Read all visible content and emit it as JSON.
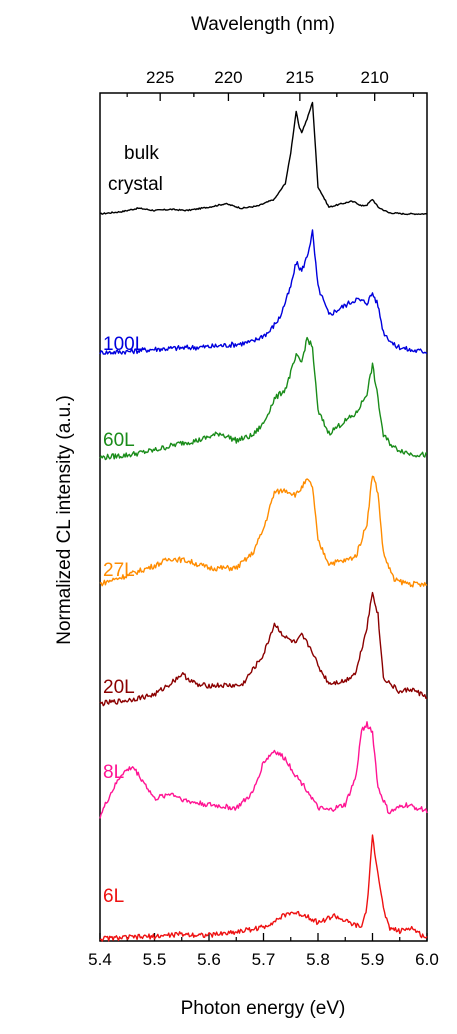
{
  "chart_data": {
    "type": "line",
    "title": "",
    "xlabel": "Photon energy (eV)",
    "x2label": "Wavelength (nm)",
    "ylabel": "Normalized CL intensity (a.u.)",
    "xlim": [
      5.4,
      6.0
    ],
    "x_ticks": [
      "5.4",
      "5.5",
      "5.6",
      "5.7",
      "5.8",
      "5.9",
      "6.0"
    ],
    "x2_ticks": [
      "225",
      "220",
      "215",
      "210"
    ],
    "y_ticklabels": false,
    "stacked_offset": true,
    "series": [
      {
        "name": "bulk crystal",
        "name_lines": [
          "bulk",
          "crystal"
        ],
        "color": "#000000",
        "x": [
          5.4,
          5.44,
          5.47,
          5.5,
          5.53,
          5.56,
          5.6,
          5.63,
          5.66,
          5.69,
          5.72,
          5.74,
          5.75,
          5.76,
          5.765,
          5.77,
          5.78,
          5.79,
          5.8,
          5.82,
          5.86,
          5.87,
          5.88,
          5.89,
          5.9,
          5.91,
          5.93,
          5.96,
          6.0
        ],
        "y": [
          0.01,
          0.03,
          0.06,
          0.04,
          0.05,
          0.04,
          0.07,
          0.1,
          0.06,
          0.08,
          0.14,
          0.28,
          0.55,
          0.92,
          0.78,
          0.73,
          0.85,
          1.0,
          0.25,
          0.07,
          0.12,
          0.11,
          0.08,
          0.09,
          0.14,
          0.07,
          0.02,
          0.01,
          0.01
        ]
      },
      {
        "name": "100L",
        "color": "#0000dd",
        "x": [
          5.4,
          5.45,
          5.5,
          5.55,
          5.6,
          5.65,
          5.68,
          5.71,
          5.73,
          5.75,
          5.76,
          5.77,
          5.78,
          5.79,
          5.8,
          5.82,
          5.85,
          5.87,
          5.89,
          5.9,
          5.91,
          5.92,
          5.94,
          5.97,
          6.0
        ],
        "y": [
          0.01,
          0.02,
          0.04,
          0.05,
          0.06,
          0.08,
          0.1,
          0.18,
          0.3,
          0.55,
          0.75,
          0.68,
          0.8,
          1.0,
          0.55,
          0.32,
          0.4,
          0.45,
          0.42,
          0.5,
          0.4,
          0.18,
          0.07,
          0.03,
          0.02
        ]
      },
      {
        "name": "60L",
        "color": "#1a8c1a",
        "x": [
          5.4,
          5.45,
          5.5,
          5.55,
          5.58,
          5.62,
          5.65,
          5.68,
          5.7,
          5.72,
          5.74,
          5.76,
          5.77,
          5.78,
          5.79,
          5.8,
          5.82,
          5.85,
          5.87,
          5.89,
          5.9,
          5.91,
          5.92,
          5.94,
          5.97,
          6.0
        ],
        "y": [
          0.02,
          0.04,
          0.08,
          0.14,
          0.16,
          0.22,
          0.16,
          0.2,
          0.3,
          0.5,
          0.58,
          0.85,
          0.8,
          1.0,
          0.92,
          0.4,
          0.22,
          0.32,
          0.38,
          0.55,
          0.78,
          0.5,
          0.2,
          0.1,
          0.05,
          0.04
        ]
      },
      {
        "name": "27L",
        "color": "#ff8c00",
        "x": [
          5.4,
          5.45,
          5.5,
          5.53,
          5.56,
          5.6,
          5.65,
          5.68,
          5.7,
          5.72,
          5.74,
          5.76,
          5.78,
          5.79,
          5.8,
          5.82,
          5.85,
          5.87,
          5.89,
          5.9,
          5.91,
          5.92,
          5.94,
          5.97,
          6.0
        ],
        "y": [
          0.05,
          0.12,
          0.2,
          0.26,
          0.24,
          0.18,
          0.18,
          0.3,
          0.5,
          0.8,
          0.82,
          0.78,
          0.9,
          0.85,
          0.4,
          0.22,
          0.24,
          0.28,
          0.55,
          0.95,
          0.8,
          0.3,
          0.08,
          0.05,
          0.04
        ]
      },
      {
        "name": "20L",
        "color": "#8b0000",
        "x": [
          5.4,
          5.45,
          5.5,
          5.53,
          5.55,
          5.58,
          5.62,
          5.66,
          5.7,
          5.72,
          5.74,
          5.76,
          5.77,
          5.79,
          5.8,
          5.82,
          5.85,
          5.87,
          5.89,
          5.9,
          5.91,
          5.92,
          5.95,
          5.97,
          6.0
        ],
        "y": [
          0.02,
          0.05,
          0.1,
          0.2,
          0.28,
          0.18,
          0.18,
          0.18,
          0.45,
          0.72,
          0.6,
          0.55,
          0.62,
          0.48,
          0.35,
          0.2,
          0.22,
          0.3,
          0.7,
          1.0,
          0.8,
          0.25,
          0.12,
          0.15,
          0.08
        ]
      },
      {
        "name": "8L",
        "color": "#ff1493",
        "x": [
          5.4,
          5.42,
          5.44,
          5.46,
          5.48,
          5.5,
          5.53,
          5.56,
          5.6,
          5.65,
          5.68,
          5.7,
          5.72,
          5.74,
          5.76,
          5.78,
          5.8,
          5.82,
          5.85,
          5.87,
          5.88,
          5.89,
          5.9,
          5.91,
          5.93,
          5.96,
          6.0
        ],
        "y": [
          0.05,
          0.25,
          0.42,
          0.48,
          0.35,
          0.2,
          0.25,
          0.18,
          0.15,
          0.12,
          0.25,
          0.52,
          0.62,
          0.55,
          0.4,
          0.28,
          0.12,
          0.1,
          0.15,
          0.4,
          0.8,
          0.85,
          0.78,
          0.3,
          0.08,
          0.15,
          0.1
        ]
      },
      {
        "name": "6L",
        "color": "#ee1111",
        "x": [
          5.4,
          5.45,
          5.5,
          5.55,
          5.6,
          5.65,
          5.7,
          5.73,
          5.75,
          5.78,
          5.8,
          5.83,
          5.86,
          5.88,
          5.89,
          5.9,
          5.91,
          5.92,
          5.93,
          5.95,
          5.97,
          5.99,
          6.0
        ],
        "y": [
          0.02,
          0.03,
          0.04,
          0.06,
          0.05,
          0.08,
          0.12,
          0.2,
          0.25,
          0.22,
          0.16,
          0.22,
          0.15,
          0.12,
          0.3,
          0.9,
          0.6,
          0.28,
          0.12,
          0.08,
          0.12,
          0.05,
          0.03
        ]
      }
    ]
  }
}
